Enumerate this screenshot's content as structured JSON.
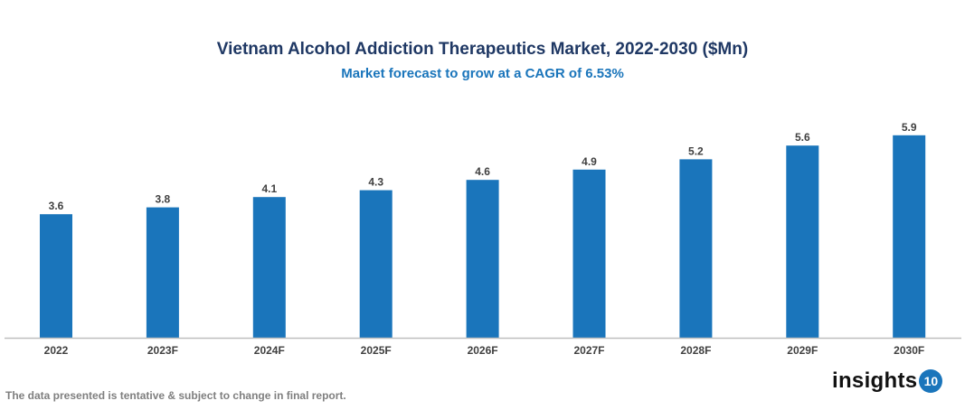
{
  "chart_data": {
    "type": "bar",
    "title": "Vietnam Alcohol Addiction Therapeutics Market, 2022-2030 ($Mn)",
    "subtitle": "Market forecast to grow at a CAGR of 6.53%",
    "categories": [
      "2022",
      "2023F",
      "2024F",
      "2025F",
      "2026F",
      "2027F",
      "2028F",
      "2029F",
      "2030F"
    ],
    "values": [
      3.6,
      3.8,
      4.1,
      4.3,
      4.6,
      4.9,
      5.2,
      5.6,
      5.9
    ],
    "xlabel": "",
    "ylabel": "",
    "ylim": [
      0,
      6
    ],
    "grid": false,
    "data_labels": true,
    "bar_color": "#1a75bb"
  },
  "footnote": "The data presented is tentative & subject to change in final report.",
  "logo": {
    "text": "insights",
    "badge": "10"
  }
}
